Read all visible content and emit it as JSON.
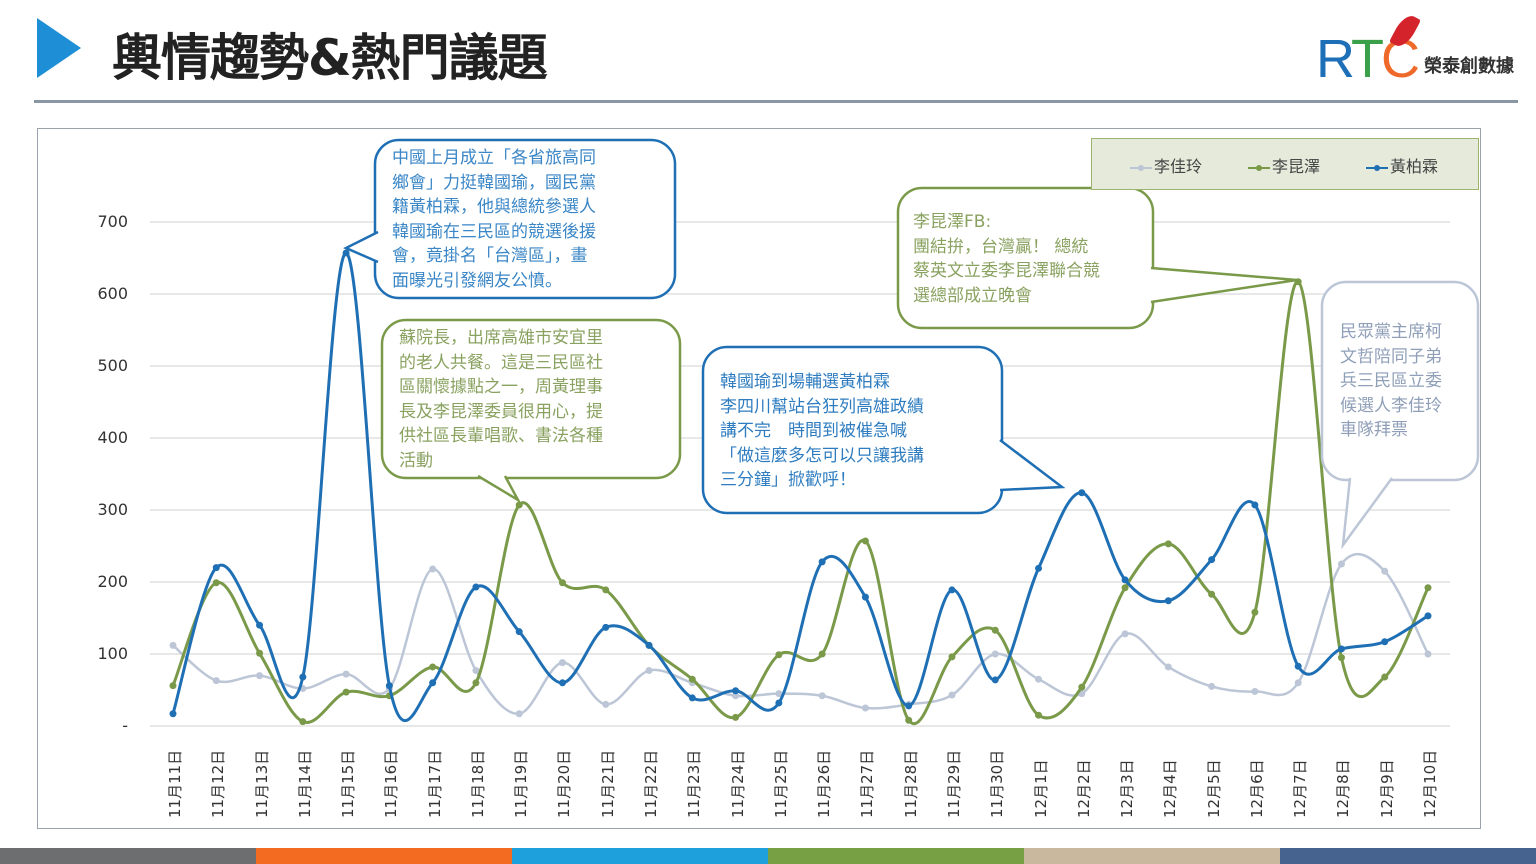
{
  "header": {
    "title": "輿情趨勢&熱門議題",
    "logo_text": "RTC",
    "logo_name": "榮泰創數據"
  },
  "colors": {
    "blue": "#1f6fb5",
    "green": "#7a9a4a",
    "grey": "#bcc6d6",
    "accent": "#1e8fd6"
  },
  "chart_data": {
    "type": "line",
    "title": "",
    "xlabel": "",
    "ylabel": "",
    "ylim": [
      0,
      700
    ],
    "yticks": [
      "-",
      "100",
      "200",
      "300",
      "400",
      "500",
      "600",
      "700"
    ],
    "grid": true,
    "legend_position": "top-right",
    "categories": [
      "11月11日",
      "11月12日",
      "11月13日",
      "11月14日",
      "11月15日",
      "11月16日",
      "11月17日",
      "11月18日",
      "11月19日",
      "11月20日",
      "11月21日",
      "11月22日",
      "11月23日",
      "11月24日",
      "11月25日",
      "11月26日",
      "11月27日",
      "11月28日",
      "11月29日",
      "11月30日",
      "12月1日",
      "12月2日",
      "12月3日",
      "12月4日",
      "12月5日",
      "12月6日",
      "12月7日",
      "12月8日",
      "12月9日",
      "12月10日"
    ],
    "series": [
      {
        "name": "李佳玲",
        "color": "#bcc6d6",
        "values": [
          112,
          63,
          70,
          52,
          72,
          52,
          218,
          77,
          17,
          88,
          30,
          77,
          60,
          42,
          45,
          42,
          25,
          30,
          43,
          100,
          65,
          45,
          128,
          82,
          55,
          48,
          60,
          225,
          215,
          100
        ]
      },
      {
        "name": "李昆澤",
        "color": "#7a9a4a",
        "values": [
          56,
          199,
          101,
          6,
          47,
          42,
          82,
          60,
          307,
          199,
          189,
          112,
          65,
          12,
          99,
          100,
          257,
          8,
          96,
          133,
          15,
          54,
          192,
          253,
          183,
          158,
          617,
          95,
          68,
          192
        ]
      },
      {
        "name": "黃柏霖",
        "color": "#1f6fb5",
        "values": [
          17,
          220,
          140,
          68,
          657,
          56,
          60,
          193,
          131,
          60,
          137,
          112,
          39,
          49,
          32,
          228,
          179,
          28,
          189,
          64,
          219,
          324,
          203,
          174,
          231,
          307,
          83,
          107,
          117,
          153
        ]
      }
    ],
    "annotations": [
      {
        "series": "黃柏霖",
        "category": "11月15日",
        "text": "中國上月成立「各省旅高同\n鄉會」力挺韓國瑜，國民黨\n籍黃柏霖，他與總統參選人\n韓國瑜在三民區的競選後援\n會，竟掛名「台灣區」，畫\n面曝光引發網友公憤。"
      },
      {
        "series": "李昆澤",
        "category": "11月19日",
        "text": "蘇院長，出席高雄市安宜里\n的老人共餐。這是三民區社\n區關懷據點之一，周黃理事\n長及李昆澤委員很用心，提\n供社區長輩唱歌、書法各種\n活動"
      },
      {
        "series": "黃柏霖",
        "category": "12月2日",
        "text": "韓國瑜到場輔選黃柏霖\n李四川幫站台狂列高雄政績\n講不完　時間到被催急喊\n「做這麼多怎可以只讓我講\n三分鐘」掀歡呼！"
      },
      {
        "series": "李昆澤",
        "category": "12月7日",
        "text": "李昆澤FB:\n團結拚，台灣贏！ 總統\n蔡英文立委李昆澤聯合競\n選總部成立晚會"
      },
      {
        "series": "李佳玲",
        "category": "12月8日",
        "text": "民眾黨主席柯\n文哲陪同子弟\n兵三民區立委\n候選人李佳玲\n車隊拜票"
      }
    ]
  },
  "footer": {
    "stripes": [
      "#6d6e70",
      "#f26b21",
      "#1ea0dc",
      "#77a044",
      "#c9b89e",
      "#46628f"
    ]
  }
}
